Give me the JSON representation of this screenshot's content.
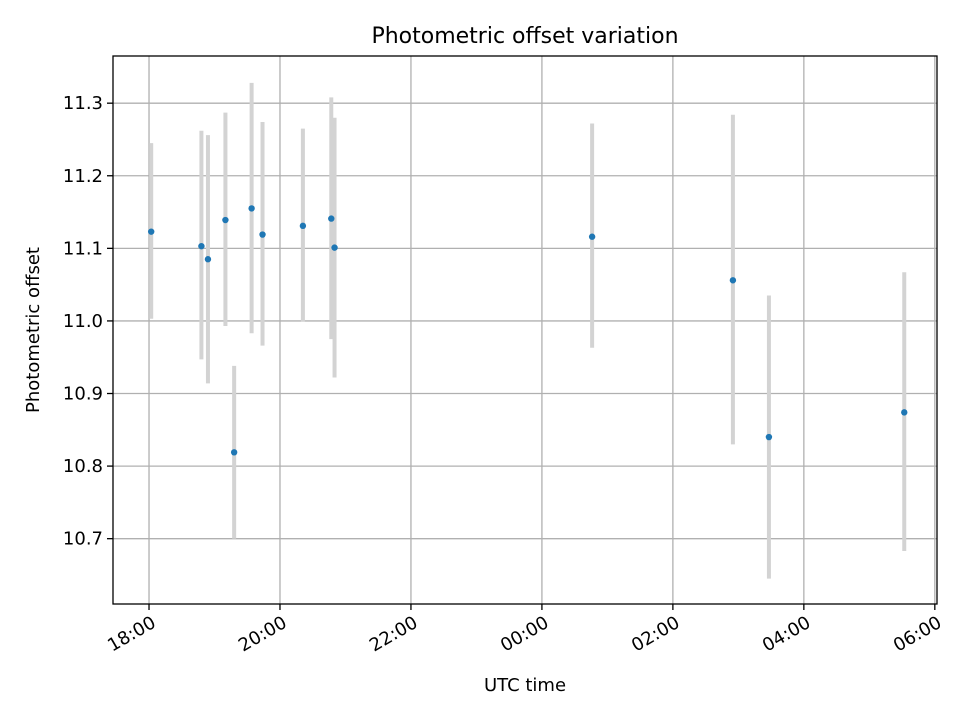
{
  "chart_data": {
    "type": "scatter",
    "title": "Photometric offset variation",
    "xlabel": "UTC time",
    "ylabel": "Photometric offset",
    "grid": true,
    "x_axis": {
      "type": "time",
      "start": "17:27",
      "end": "06:02",
      "ticks": [
        "18:00",
        "20:00",
        "22:00",
        "00:00",
        "02:00",
        "04:00",
        "06:00"
      ],
      "tick_label_rotation": 30
    },
    "y_axis": {
      "range": [
        10.61,
        11.365
      ],
      "ticks": [
        "10.7",
        "10.8",
        "10.9",
        "11.0",
        "11.1",
        "11.2",
        "11.3"
      ]
    },
    "colors": {
      "marker": "#1f77b4",
      "errorbar": "#d3d3d3"
    },
    "points": [
      {
        "x": "18:02",
        "y": 11.123,
        "y_low": 11.003,
        "y_high": 11.245
      },
      {
        "x": "18:48",
        "y": 11.103,
        "y_low": 10.947,
        "y_high": 11.262
      },
      {
        "x": "18:54",
        "y": 11.085,
        "y_low": 10.914,
        "y_high": 11.256
      },
      {
        "x": "19:10",
        "y": 11.139,
        "y_low": 10.993,
        "y_high": 11.287
      },
      {
        "x": "19:18",
        "y": 10.819,
        "y_low": 10.7,
        "y_high": 10.938
      },
      {
        "x": "19:34",
        "y": 11.155,
        "y_low": 10.983,
        "y_high": 11.328
      },
      {
        "x": "19:44",
        "y": 11.119,
        "y_low": 10.966,
        "y_high": 11.274
      },
      {
        "x": "20:21",
        "y": 11.131,
        "y_low": 10.999,
        "y_high": 11.265
      },
      {
        "x": "20:47",
        "y": 11.141,
        "y_low": 10.975,
        "y_high": 11.308
      },
      {
        "x": "20:50",
        "y": 11.101,
        "y_low": 10.922,
        "y_high": 11.28
      },
      {
        "x": "00:46",
        "y": 11.116,
        "y_low": 10.963,
        "y_high": 11.272
      },
      {
        "x": "02:55",
        "y": 11.056,
        "y_low": 10.83,
        "y_high": 11.284
      },
      {
        "x": "03:28",
        "y": 10.84,
        "y_low": 10.645,
        "y_high": 11.035
      },
      {
        "x": "05:32",
        "y": 10.874,
        "y_low": 10.683,
        "y_high": 11.067
      }
    ]
  }
}
